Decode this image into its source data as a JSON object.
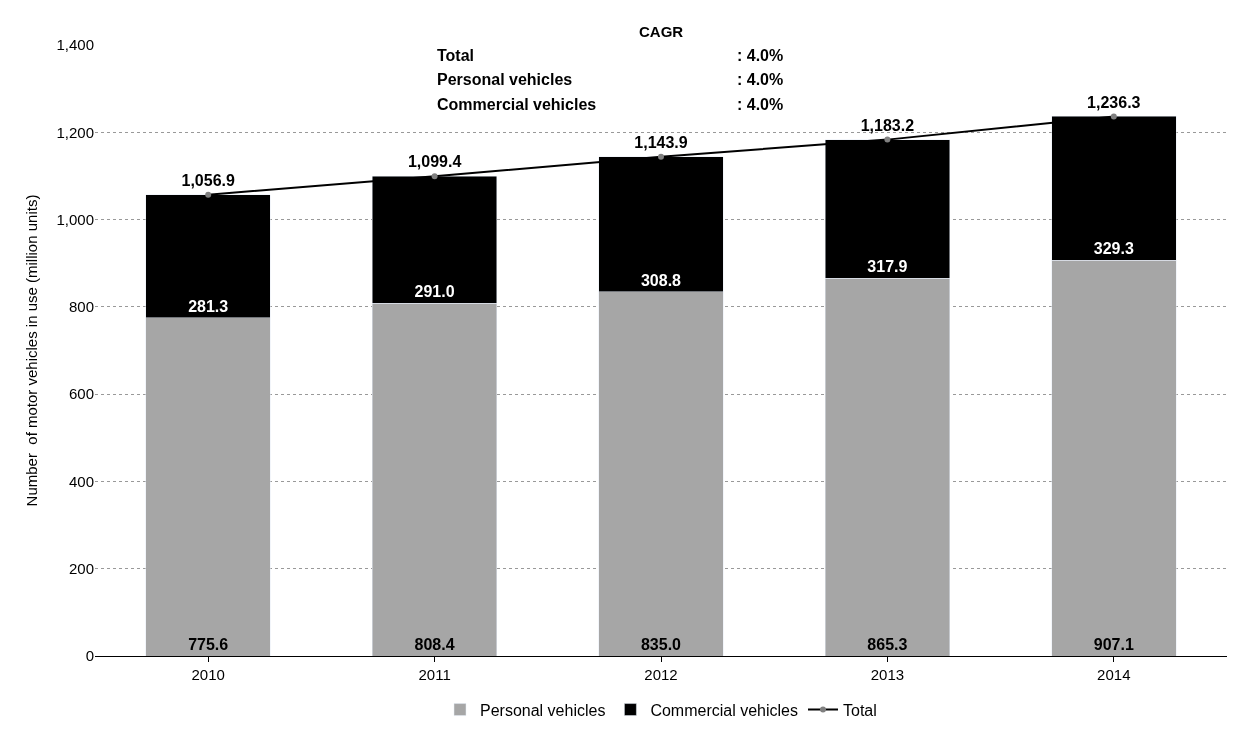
{
  "chart_data": {
    "type": "bar",
    "stacked": true,
    "categories": [
      "2010",
      "2011",
      "2012",
      "2013",
      "2014"
    ],
    "ylabel": "Number  of motor vehicles in use (million units)",
    "series": [
      {
        "name": "Personal vehicles",
        "color": "#a6a6a6",
        "values": [
          775.6,
          808.4,
          835.0,
          865.3,
          907.1
        ],
        "value_labels": [
          "775.6",
          "808.4",
          "835.0",
          "865.3",
          "907.1"
        ]
      },
      {
        "name": "Commercial vehicles",
        "color": "#000000",
        "values": [
          281.3,
          291.0,
          308.8,
          317.9,
          329.3
        ],
        "value_labels": [
          "281.3",
          "291.0",
          "308.8",
          "317.9",
          "329.3"
        ]
      },
      {
        "name": "Total",
        "type": "line",
        "color": "#000000",
        "marker": "circle",
        "values": [
          1056.9,
          1099.4,
          1143.9,
          1183.2,
          1236.3
        ],
        "value_labels": [
          "1,056.9",
          "1,099.4",
          "1,143.9",
          "1,183.2",
          "1,236.3"
        ]
      }
    ],
    "ylim": [
      0,
      1400
    ],
    "yticks": [
      0,
      200,
      400,
      600,
      800,
      {
        "value": 1000,
        "label": "1,000"
      },
      {
        "value": 1200,
        "label": "1,200"
      },
      {
        "value": 1400,
        "label": "1,400"
      }
    ],
    "grid": "y",
    "legend": "bottom",
    "annotations": [
      "CAGR",
      "Total",
      ": 4.0%",
      "Personal vehicles",
      ": 4.0%",
      "Commercial vehicles",
      ": 4.0%"
    ]
  }
}
